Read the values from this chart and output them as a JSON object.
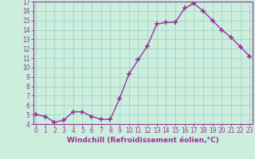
{
  "x": [
    0,
    1,
    2,
    3,
    4,
    5,
    6,
    7,
    8,
    9,
    10,
    11,
    12,
    13,
    14,
    15,
    16,
    17,
    18,
    19,
    20,
    21,
    22,
    23
  ],
  "y": [
    5.0,
    4.8,
    4.2,
    4.4,
    5.3,
    5.3,
    4.8,
    4.5,
    4.5,
    6.7,
    9.3,
    10.8,
    12.3,
    14.6,
    14.8,
    14.8,
    16.3,
    16.8,
    16.0,
    15.0,
    14.0,
    13.2,
    12.2,
    11.2
  ],
  "line_color": "#993399",
  "marker": "+",
  "markersize": 4,
  "linewidth": 1.0,
  "xlabel": "Windchill (Refroidissement éolien,°C)",
  "ylim": [
    4,
    17
  ],
  "xlim": [
    -0.3,
    23.3
  ],
  "yticks": [
    4,
    5,
    6,
    7,
    8,
    9,
    10,
    11,
    12,
    13,
    14,
    15,
    16,
    17
  ],
  "xticks": [
    0,
    1,
    2,
    3,
    4,
    5,
    6,
    7,
    8,
    9,
    10,
    11,
    12,
    13,
    14,
    15,
    16,
    17,
    18,
    19,
    20,
    21,
    22,
    23
  ],
  "bg_color": "#cceedd",
  "grid_color": "#99cccc",
  "axis_color": "#993399",
  "tick_label_color": "#993399",
  "xlabel_color": "#993399",
  "xlabel_fontsize": 6.5,
  "tick_fontsize": 5.5
}
